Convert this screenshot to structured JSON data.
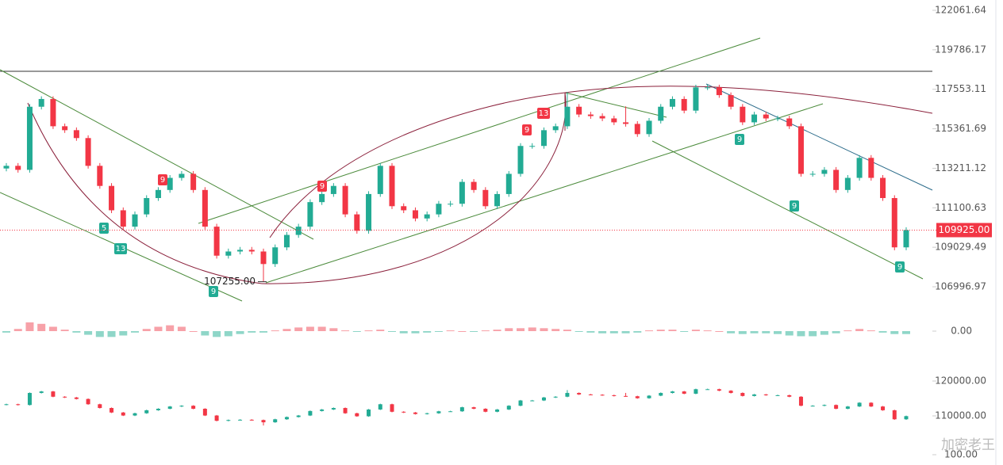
{
  "chart_data": {
    "type": "candlestick",
    "log_scale": true,
    "up_color": "#22ab94",
    "down_color": "#f23645",
    "ylim": [
      106072,
      122662
    ],
    "yticks": [
      {
        "value": 122061.64,
        "label": "122061.64"
      },
      {
        "value": 119786.17,
        "label": "119786.17"
      },
      {
        "value": 117553.11,
        "label": "117553.11"
      },
      {
        "value": 115361.69,
        "label": "115361.69"
      },
      {
        "value": 113211.12,
        "label": "113211.12"
      },
      {
        "value": 111100.63,
        "label": "111100.63"
      },
      {
        "value": 109029.49,
        "label": "109029.49"
      },
      {
        "value": 106996.97,
        "label": "106996.97"
      }
    ],
    "current_price": {
      "value": 109925,
      "label": "109925.00"
    },
    "low_annotation": {
      "value": 107255,
      "label": "107255.00"
    },
    "td_labels": [
      "5",
      "13",
      "9",
      "9",
      "9",
      "9",
      "13",
      "9",
      "9",
      "9"
    ],
    "open": [
      113200,
      113343,
      113126,
      116580,
      117011,
      115501,
      115285,
      114853,
      113343,
      112263,
      110968,
      110105,
      110752,
      111616,
      112047,
      112695,
      112911,
      112047,
      110105,
      108594,
      108810,
      108896,
      108810,
      108162,
      109025,
      109673,
      110105,
      111400,
      111831,
      112263,
      110752,
      109889,
      111831,
      113343,
      111184,
      110968,
      110536,
      110752,
      111313,
      111313,
      112479,
      112047,
      111184,
      111831,
      112911,
      114422,
      114422,
      115285,
      115501,
      116580,
      116148,
      116062,
      115932,
      115717,
      115630,
      115069,
      115803,
      116580,
      117011,
      116364,
      117659,
      117659,
      117227,
      116580,
      115717,
      116148,
      115932,
      115932,
      115501,
      112911,
      112911,
      113126,
      112047,
      112695,
      113774,
      112695,
      111616,
      109025
    ],
    "high": [
      113493,
      113493,
      116730,
      117161,
      117161,
      115651,
      115435,
      115003,
      113493,
      112413,
      111118,
      110902,
      111766,
      112197,
      112845,
      113061,
      113061,
      112197,
      110255,
      108960,
      109046,
      109046,
      108960,
      109175,
      109823,
      110255,
      111550,
      111981,
      112413,
      112413,
      110902,
      111981,
      113493,
      113493,
      111334,
      111118,
      110902,
      111463,
      111463,
      112629,
      112629,
      112197,
      111981,
      113061,
      114572,
      114572,
      115435,
      115651,
      117400,
      116730,
      116298,
      116212,
      116082,
      116600,
      115780,
      115953,
      116730,
      117161,
      117161,
      117809,
      117809,
      117809,
      117377,
      116730,
      116298,
      116298,
      116082,
      116082,
      115651,
      113061,
      113276,
      113276,
      112845,
      113924,
      113924,
      112845,
      111766,
      110075
    ],
    "low": [
      113050,
      112976,
      112976,
      116430,
      115351,
      115135,
      114703,
      113193,
      112113,
      110818,
      109955,
      109955,
      110602,
      111466,
      111897,
      112545,
      111897,
      109955,
      108444,
      108444,
      108660,
      108660,
      107255,
      108012,
      108875,
      109523,
      109955,
      111250,
      111681,
      110602,
      109739,
      109739,
      111681,
      111034,
      110818,
      110386,
      110386,
      110602,
      111163,
      111163,
      111897,
      111034,
      111034,
      111681,
      112761,
      114272,
      114272,
      115135,
      115351,
      115998,
      115912,
      115782,
      115567,
      115480,
      114919,
      114919,
      115653,
      116430,
      116214,
      116214,
      117509,
      117077,
      116430,
      115567,
      115567,
      115782,
      115782,
      115351,
      112761,
      112761,
      112761,
      111897,
      111897,
      112545,
      112545,
      111466,
      108875,
      108875
    ],
    "close": [
      113343,
      113126,
      116580,
      117011,
      115501,
      115285,
      114853,
      113343,
      112263,
      110968,
      110105,
      110752,
      111616,
      112047,
      112695,
      112911,
      112047,
      110105,
      108594,
      108810,
      108896,
      108810,
      108162,
      109025,
      109673,
      110105,
      111400,
      111831,
      112263,
      110752,
      109889,
      111831,
      113343,
      111184,
      110968,
      110536,
      110752,
      111313,
      111313,
      112479,
      112047,
      111184,
      111831,
      112911,
      114422,
      114422,
      115285,
      115501,
      116580,
      116148,
      116062,
      115932,
      115717,
      115630,
      115069,
      115803,
      116580,
      117011,
      116364,
      117659,
      117659,
      117227,
      116580,
      115717,
      116148,
      115932,
      115932,
      115501,
      112911,
      112911,
      113126,
      112047,
      112695,
      113774,
      112695,
      111616,
      109025,
      109925
    ],
    "macd": {
      "ylim": [
        -25,
        25
      ],
      "yticks": [
        {
          "value": 0,
          "label": "0.00"
        }
      ],
      "histogram": [
        -2,
        3,
        12,
        10,
        6,
        2,
        -2,
        -5,
        -8,
        -8,
        -6,
        -2,
        3,
        6,
        8,
        6,
        0,
        -6,
        -8,
        -7,
        -4,
        -2,
        -2,
        1,
        3,
        5,
        6,
        6,
        4,
        1,
        -1,
        1,
        2,
        -1,
        -3,
        -3,
        -2,
        -1,
        1,
        0,
        -1,
        1,
        2,
        4,
        4,
        5,
        4,
        3,
        2,
        -1,
        -2,
        -3,
        -3,
        -3,
        -2,
        1,
        2,
        2,
        -1,
        2,
        1,
        0,
        -3,
        -4,
        -3,
        -3,
        -4,
        -6,
        -7,
        -7,
        -5,
        -3,
        1,
        3,
        1,
        -2,
        -4,
        -4
      ]
    },
    "bollinger": {
      "ylim": [
        104318,
        125909
      ],
      "yticks": [
        {
          "value": 120000,
          "label": "120000.00"
        },
        {
          "value": 110000,
          "label": "110000.00"
        }
      ]
    },
    "rsi": {
      "ylim": [
        60,
        100
      ],
      "yticks": [
        {
          "value": 100,
          "label": "100.00"
        }
      ]
    },
    "watermark": "加密老王"
  }
}
